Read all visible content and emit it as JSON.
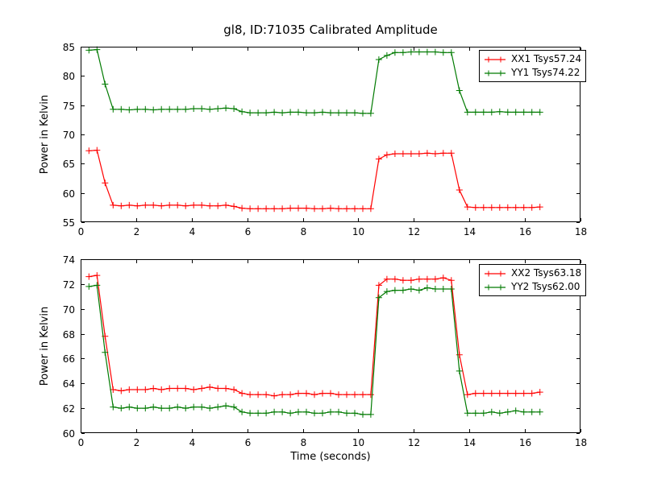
{
  "figure": {
    "background": "#ffffff",
    "frame_color": "#000000",
    "tick_label_color": "#000000"
  },
  "chart_data": [
    {
      "type": "line",
      "title": "gl8, ID:71035 Calibrated Amplitude",
      "xlabel": "",
      "ylabel": "Power in Kelvin",
      "xlim": [
        0,
        18
      ],
      "ylim": [
        55,
        85
      ],
      "xticks": [
        0,
        2,
        4,
        6,
        8,
        10,
        12,
        14,
        16,
        18
      ],
      "yticks": [
        55,
        60,
        65,
        70,
        75,
        80,
        85
      ],
      "grid": false,
      "legend_position": "upper right",
      "x": [
        0.3,
        0.59,
        0.88,
        1.17,
        1.46,
        1.75,
        2.04,
        2.33,
        2.62,
        2.91,
        3.2,
        3.49,
        3.78,
        4.07,
        4.36,
        4.65,
        4.94,
        5.23,
        5.52,
        5.81,
        6.1,
        6.39,
        6.68,
        6.97,
        7.26,
        7.55,
        7.84,
        8.13,
        8.42,
        8.71,
        9.0,
        9.29,
        9.58,
        9.87,
        10.16,
        10.45,
        10.74,
        11.03,
        11.32,
        11.61,
        11.9,
        12.19,
        12.48,
        12.77,
        13.06,
        13.35,
        13.64,
        13.93,
        14.22,
        14.51,
        14.8,
        15.09,
        15.38,
        15.67,
        15.96,
        16.25,
        16.54
      ],
      "series": [
        {
          "id": "xx1",
          "name": "XX1 Tsys57.24",
          "color": "#ff0000",
          "marker": "plus",
          "values": [
            67.2,
            67.3,
            61.7,
            57.9,
            57.8,
            57.9,
            57.8,
            57.9,
            57.9,
            57.8,
            57.9,
            57.9,
            57.8,
            57.9,
            57.9,
            57.8,
            57.8,
            57.9,
            57.7,
            57.4,
            57.3,
            57.3,
            57.3,
            57.3,
            57.3,
            57.4,
            57.4,
            57.4,
            57.3,
            57.3,
            57.4,
            57.3,
            57.3,
            57.3,
            57.3,
            57.3,
            65.8,
            66.5,
            66.7,
            66.7,
            66.7,
            66.7,
            66.8,
            66.7,
            66.8,
            66.8,
            60.5,
            57.6,
            57.5,
            57.5,
            57.5,
            57.5,
            57.5,
            57.5,
            57.5,
            57.5,
            57.6
          ]
        },
        {
          "id": "yy1",
          "name": "YY1 Tsys74.22",
          "color": "#007a00",
          "marker": "plus",
          "values": [
            84.4,
            84.5,
            78.6,
            74.3,
            74.3,
            74.2,
            74.3,
            74.3,
            74.2,
            74.3,
            74.3,
            74.3,
            74.3,
            74.4,
            74.4,
            74.3,
            74.4,
            74.5,
            74.4,
            73.9,
            73.7,
            73.7,
            73.7,
            73.8,
            73.7,
            73.8,
            73.8,
            73.7,
            73.7,
            73.8,
            73.7,
            73.7,
            73.7,
            73.7,
            73.6,
            73.6,
            82.8,
            83.5,
            84.0,
            84.0,
            84.1,
            84.1,
            84.1,
            84.1,
            84.0,
            84.0,
            77.5,
            73.8,
            73.8,
            73.8,
            73.8,
            73.9,
            73.8,
            73.8,
            73.8,
            73.8,
            73.8
          ]
        }
      ]
    },
    {
      "type": "line",
      "title": "",
      "xlabel": "Time (seconds)",
      "ylabel": "Power in Kelvin",
      "xlim": [
        0,
        18
      ],
      "ylim": [
        60,
        74
      ],
      "xticks": [
        0,
        2,
        4,
        6,
        8,
        10,
        12,
        14,
        16,
        18
      ],
      "yticks": [
        60,
        62,
        64,
        66,
        68,
        70,
        72,
        74
      ],
      "grid": false,
      "legend_position": "upper right",
      "x": [
        0.3,
        0.59,
        0.88,
        1.17,
        1.46,
        1.75,
        2.04,
        2.33,
        2.62,
        2.91,
        3.2,
        3.49,
        3.78,
        4.07,
        4.36,
        4.65,
        4.94,
        5.23,
        5.52,
        5.81,
        6.1,
        6.39,
        6.68,
        6.97,
        7.26,
        7.55,
        7.84,
        8.13,
        8.42,
        8.71,
        9.0,
        9.29,
        9.58,
        9.87,
        10.16,
        10.45,
        10.74,
        11.03,
        11.32,
        11.61,
        11.9,
        12.19,
        12.48,
        12.77,
        13.06,
        13.35,
        13.64,
        13.93,
        14.22,
        14.51,
        14.8,
        15.09,
        15.38,
        15.67,
        15.96,
        16.25,
        16.54
      ],
      "series": [
        {
          "id": "xx2",
          "name": "XX2 Tsys63.18",
          "color": "#ff0000",
          "marker": "plus",
          "values": [
            72.6,
            72.7,
            67.8,
            63.5,
            63.4,
            63.5,
            63.5,
            63.5,
            63.6,
            63.5,
            63.6,
            63.6,
            63.6,
            63.5,
            63.6,
            63.7,
            63.6,
            63.6,
            63.5,
            63.2,
            63.1,
            63.1,
            63.1,
            63.0,
            63.1,
            63.1,
            63.2,
            63.2,
            63.1,
            63.2,
            63.2,
            63.1,
            63.1,
            63.1,
            63.1,
            63.1,
            71.9,
            72.4,
            72.4,
            72.3,
            72.3,
            72.4,
            72.4,
            72.4,
            72.5,
            72.3,
            66.3,
            63.1,
            63.2,
            63.2,
            63.2,
            63.2,
            63.2,
            63.2,
            63.2,
            63.2,
            63.3
          ]
        },
        {
          "id": "yy2",
          "name": "YY2 Tsys62.00",
          "color": "#007a00",
          "marker": "plus",
          "values": [
            71.8,
            71.9,
            66.5,
            62.1,
            62.0,
            62.1,
            62.0,
            62.0,
            62.1,
            62.0,
            62.0,
            62.1,
            62.0,
            62.1,
            62.1,
            62.0,
            62.1,
            62.2,
            62.1,
            61.7,
            61.6,
            61.6,
            61.6,
            61.7,
            61.7,
            61.6,
            61.7,
            61.7,
            61.6,
            61.6,
            61.7,
            61.7,
            61.6,
            61.6,
            61.5,
            61.5,
            70.9,
            71.4,
            71.5,
            71.5,
            71.6,
            71.5,
            71.7,
            71.6,
            71.6,
            71.6,
            65.0,
            61.6,
            61.6,
            61.6,
            61.7,
            61.6,
            61.7,
            61.8,
            61.7,
            61.7,
            61.7
          ]
        }
      ]
    }
  ]
}
